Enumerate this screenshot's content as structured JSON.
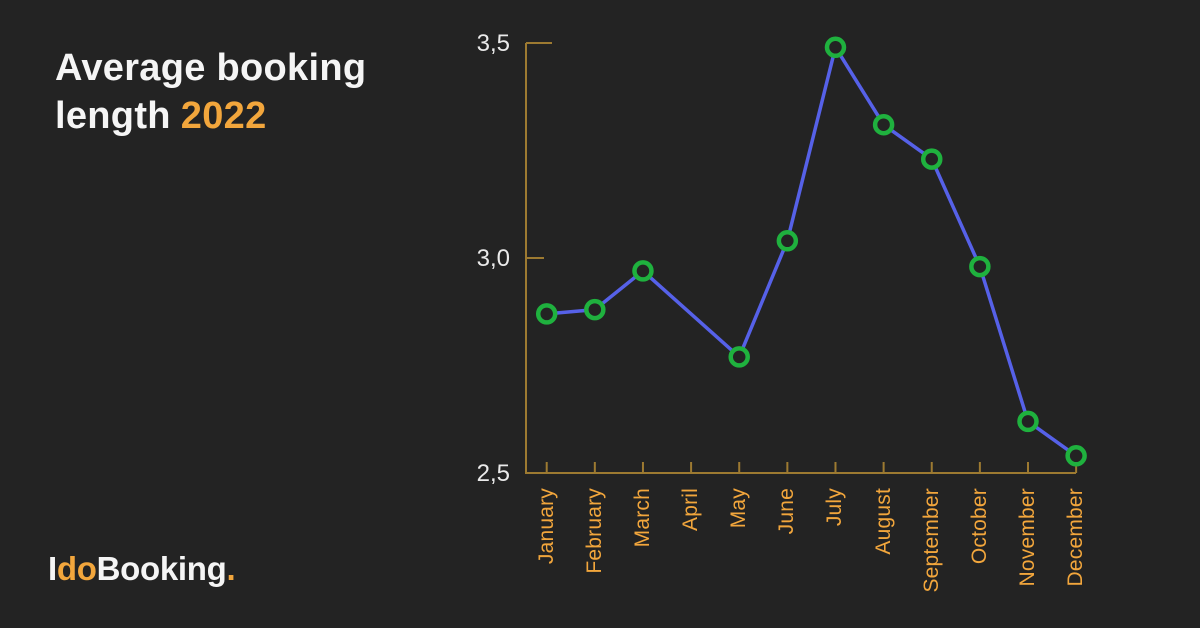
{
  "title": {
    "line1": "Average booking",
    "line2_text": "length",
    "line2_year": "2022"
  },
  "logo": {
    "part_i": "I",
    "part_do": "do",
    "part_booking": "Booking",
    "part_dot": "."
  },
  "colors": {
    "background": "#232323",
    "title_text": "#f5f5f5",
    "accent_orange": "#f2a63c",
    "axis_gold": "#9d7a31",
    "line_blue": "#5661e8",
    "marker_green": "#1fb13e",
    "ytick_text": "#eaeaea"
  },
  "chart_data": {
    "type": "line",
    "title": "Average booking length 2022",
    "categories": [
      "January",
      "February",
      "March",
      "April",
      "May",
      "June",
      "July",
      "August",
      "September",
      "October",
      "November",
      "December"
    ],
    "values": [
      2.87,
      2.88,
      2.97,
      null,
      2.77,
      3.04,
      3.49,
      3.31,
      3.23,
      2.98,
      2.62,
      2.54
    ],
    "ylim": [
      2.5,
      3.5
    ],
    "yticks": [
      {
        "label": "3,5",
        "value": 3.5
      },
      {
        "label": "3,0",
        "value": 3.0
      },
      {
        "label": "2,5",
        "value": 2.5
      }
    ],
    "xlabel": "",
    "ylabel": "",
    "grid": false,
    "legend": false,
    "line_color": "#5661e8",
    "marker_color": "#1fb13e",
    "marker_fill": "#232323",
    "axis_color": "#9d7a31",
    "x_label_color": "#f2a63c"
  }
}
